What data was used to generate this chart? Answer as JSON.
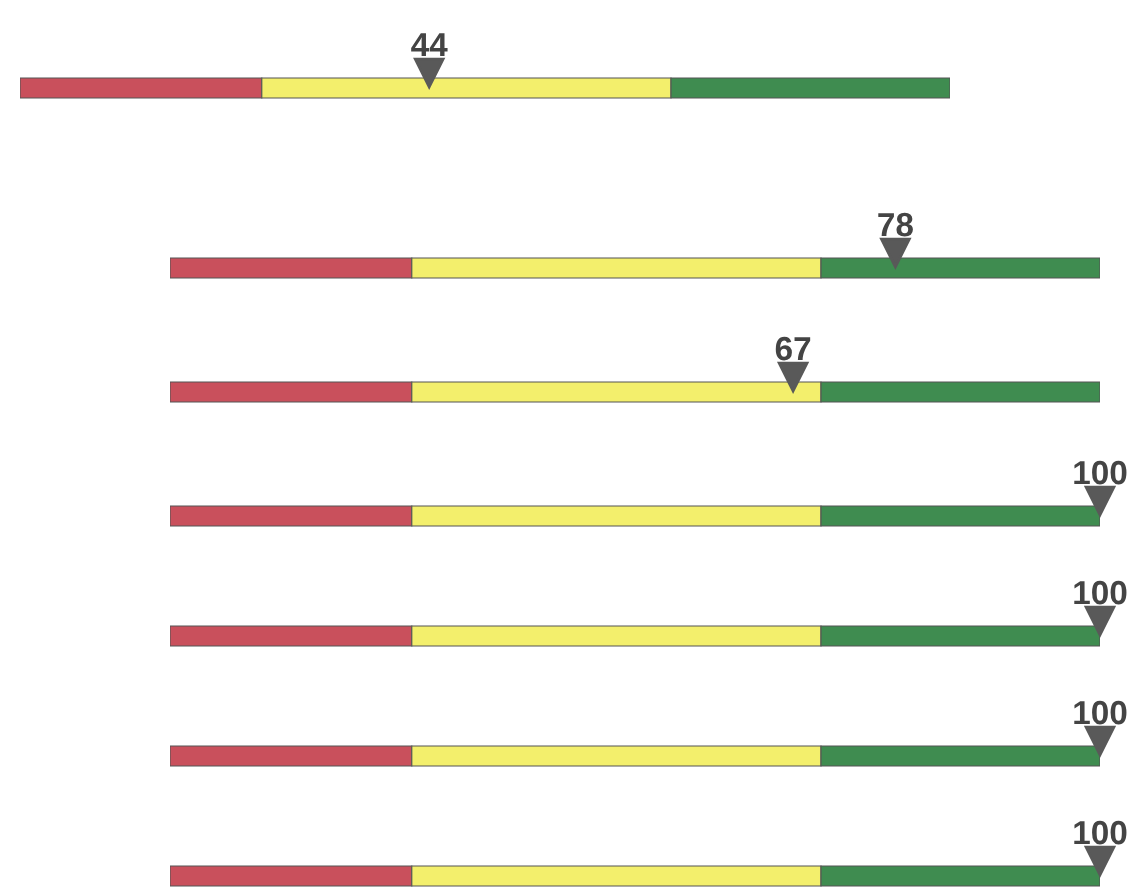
{
  "chart_data": {
    "type": "other",
    "categories": [
      null,
      null,
      null,
      null,
      null,
      null,
      null
    ],
    "values": [
      44,
      78,
      67,
      100,
      100,
      100,
      100
    ],
    "data_labels": true,
    "color": "#595959"
  }
}
